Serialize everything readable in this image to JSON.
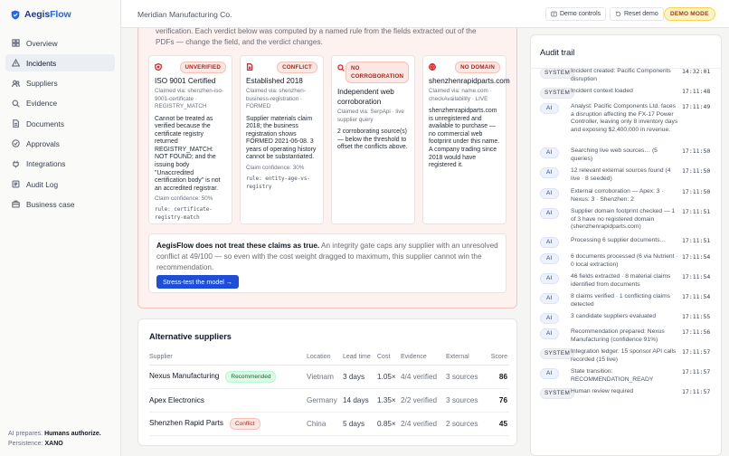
{
  "brand": {
    "name_a": "Aegis",
    "name_b": "Flow"
  },
  "sidebar": {
    "items": [
      {
        "label": "Overview",
        "icon": "grid-icon"
      },
      {
        "label": "Incidents",
        "icon": "warning-icon"
      },
      {
        "label": "Suppliers",
        "icon": "users-icon"
      },
      {
        "label": "Evidence",
        "icon": "search-icon"
      },
      {
        "label": "Documents",
        "icon": "document-icon"
      },
      {
        "label": "Approvals",
        "icon": "check-icon"
      },
      {
        "label": "Integrations",
        "icon": "plug-icon"
      },
      {
        "label": "Audit Log",
        "icon": "log-icon"
      },
      {
        "label": "Business case",
        "icon": "briefcase-icon"
      }
    ],
    "active_index": 1,
    "footer_line1_a": "AI prepares.",
    "footer_line1_b": "Humans authorize.",
    "footer_line2_a": "Persistence:",
    "footer_line2_b": "XANO"
  },
  "topbar": {
    "org": "Meridian Manufacturing Co.",
    "demo_controls": "Demo controls",
    "reset_demo": "Reset demo",
    "demo_mode": "DEMO MODE"
  },
  "intro_text": "verification. Each verdict below was computed by a named rule from the fields extracted out of the PDFs — change the field, and the verdict changes.",
  "claims": [
    {
      "status": "UNVERIFIED",
      "title": "ISO 9001 Certified",
      "via": "Claimed via: shenzhen-iso-9001-certificate · REGISTRY_MATCH",
      "body": "Cannot be treated as verified because the certificate registry returned REGISTRY_MATCH: NOT FOUND; and the issuing body \"Unaccredited certification body\" is not an accredited registrar.",
      "confidence": "Claim confidence: 50%",
      "rule": "rule: certificate-registry-match"
    },
    {
      "status": "CONFLICT",
      "title": "Established 2018",
      "via": "Claimed via: shenzhen-business-registration · FORMED",
      "body": "Supplier materials claim 2018; the business registration shows FORMED 2021-06-08. 3 years of operating history cannot be substantiated.",
      "confidence": "Claim confidence: 30%",
      "rule": "rule: entity-age-vs-registry"
    },
    {
      "status": "NO CORROBORATION",
      "title": "Independent web corroboration",
      "via": "Claimed via: SerpApi · live supplier query",
      "body": "2 corroborating source(s) — below the threshold to offset the conflicts above.",
      "confidence": "",
      "rule": ""
    },
    {
      "status": "NO DOMAIN",
      "title": "shenzhenrapidparts.com",
      "via": "Claimed via: name.com · checkAvailability · LIVE",
      "body": "shenzhenrapidparts.com is unregistered and available to purchase — no commercial web footprint under this name. A company trading since 2018 would have registered it.",
      "confidence": "",
      "rule": ""
    }
  ],
  "gate": {
    "bold": "AegisFlow does not treat these claims as true.",
    "rest": " An integrity gate caps any supplier with an unresolved conflict at 49/100 — so even with the cost weight dragged to maximum, this supplier cannot win the recommendation.",
    "button": "Stress-test the model →"
  },
  "alternatives": {
    "title": "Alternative suppliers",
    "headers": [
      "Supplier",
      "Location",
      "Lead time",
      "Cost",
      "Evidence",
      "External",
      "Score"
    ],
    "rows": [
      {
        "name": "Nexus Manufacturing",
        "tag": "Recommended",
        "location": "Vietnam",
        "lead": "3 days",
        "cost": "1.05×",
        "evidence": "4/4 verified",
        "external": "3 sources",
        "score": "86"
      },
      {
        "name": "Apex Electronics",
        "tag": "",
        "location": "Germany",
        "lead": "14 days",
        "cost": "1.35×",
        "evidence": "2/2 verified",
        "external": "3 sources",
        "score": "76"
      },
      {
        "name": "Shenzhen Rapid Parts",
        "tag": "Conflict",
        "location": "China",
        "lead": "5 days",
        "cost": "0.85×",
        "evidence": "2/4 verified",
        "external": "2 sources",
        "score": "45"
      }
    ]
  },
  "audit": {
    "title": "Audit trail",
    "entries": [
      {
        "actor": "SYSTEM",
        "text": "Incident created: Pacific Components disruption",
        "time": "14:32:01"
      },
      {
        "actor": "SYSTEM",
        "text": "Incident context loaded",
        "time": "17:11:48"
      },
      {
        "actor": "AI",
        "text": "Analyst: Pacific Components Ltd. faces a disruption affecting the FX-17 Power Controller, leaving only 8 inventory days and exposing $2,400,000 in revenue.",
        "time": "17:11:49"
      },
      {
        "actor": "AI",
        "text": "Searching live web sources… (5 queries)",
        "time": "17:11:50"
      },
      {
        "actor": "AI",
        "text": "12 relevant external sources found (4 live · 8 seeded)",
        "time": "17:11:50"
      },
      {
        "actor": "AI",
        "text": "External corroboration — Apex: 3 · Nexus: 3 · Shenzhen: 2",
        "time": "17:11:50"
      },
      {
        "actor": "AI",
        "text": "Supplier domain footprint checked — 1 of 3 have no registered domain (shenzhenrapidparts.com)",
        "time": "17:11:51"
      },
      {
        "actor": "AI",
        "text": "Processing 6 supplier documents…",
        "time": "17:11:51"
      },
      {
        "actor": "AI",
        "text": "6 documents processed (6 via Nutrient · 0 local extraction)",
        "time": "17:11:54"
      },
      {
        "actor": "AI",
        "text": "46 fields extracted · 8 material claims identified from documents",
        "time": "17:11:54"
      },
      {
        "actor": "AI",
        "text": "8 claims verified · 1 conflicting claims detected",
        "time": "17:11:54"
      },
      {
        "actor": "AI",
        "text": "3 candidate suppliers evaluated",
        "time": "17:11:55"
      },
      {
        "actor": "AI",
        "text": "Recommendation prepared: Nexus Manufacturing (confidence 91%)",
        "time": "17:11:56"
      },
      {
        "actor": "SYSTEM",
        "text": "Integration ledger: 15 sponsor API calls recorded (15 live)",
        "time": "17:11:57"
      },
      {
        "actor": "AI",
        "text": "State transition: RECOMMENDATION_READY",
        "time": "17:11:57"
      },
      {
        "actor": "SYSTEM",
        "text": "Human review required",
        "time": "17:11:57"
      }
    ]
  },
  "colors": {
    "accent": "#1d4ed8",
    "alert_bg": "#fdf2f0",
    "alert_border": "#f2c6bd",
    "brand": "#1e3a8a"
  }
}
